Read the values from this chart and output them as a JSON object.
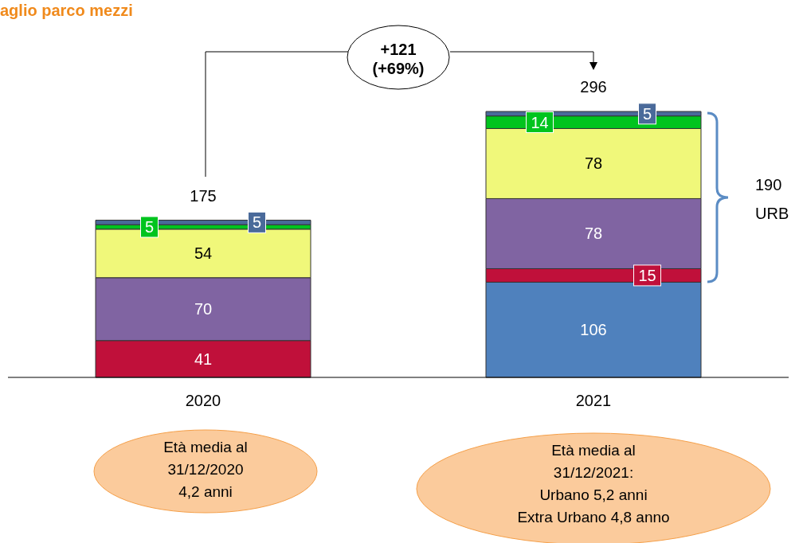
{
  "chart_data": {
    "type": "bar",
    "title": "aglio parco mezzi",
    "categories": [
      "2020",
      "2021"
    ],
    "series": [
      {
        "color": "#4f81bd",
        "values": [
          null,
          106
        ]
      },
      {
        "color": "#c0103a",
        "values": [
          41,
          15
        ]
      },
      {
        "color": "#8064a2",
        "values": [
          70,
          78
        ]
      },
      {
        "color": "#f0f87a",
        "values": [
          54,
          78
        ]
      },
      {
        "color": "#00c41e",
        "values": [
          5,
          14
        ]
      },
      {
        "color": "#4a6a9a",
        "values": [
          5,
          5
        ]
      }
    ],
    "stacked": true,
    "data_labels": true,
    "totals": [
      "175",
      "296"
    ],
    "grid": false,
    "legend": false,
    "annotations": [
      "+121\n(+69%)",
      "190\nURB",
      "Età media al\n31/12/2020\n4,2 anni",
      "Età media al\n31/12/2021:\nUrbano 5,2 anni\nExtra Urbano 4,8 anno"
    ]
  }
}
